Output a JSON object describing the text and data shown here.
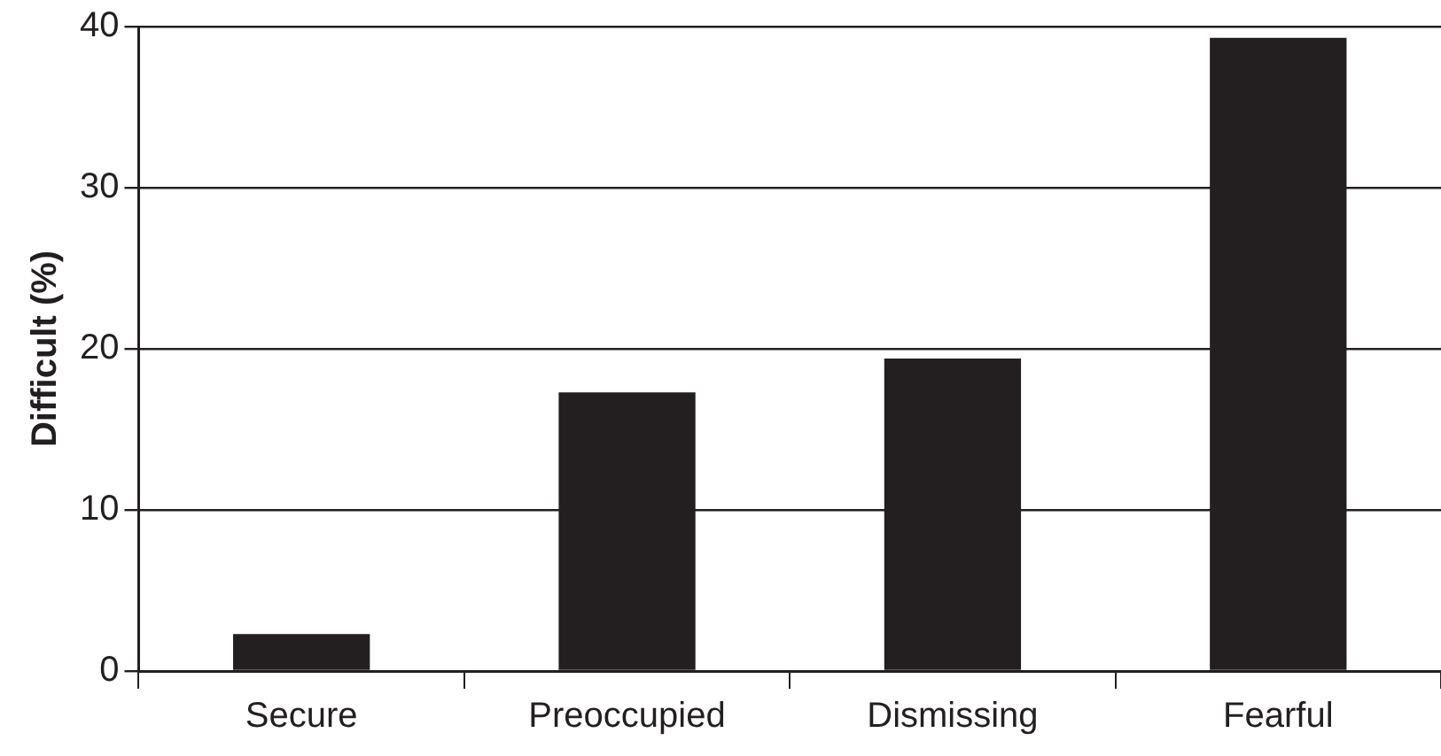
{
  "chart_data": {
    "type": "bar",
    "ylabel": "Difficult (%)",
    "categories": [
      "Secure",
      "Preoccupied",
      "Dismissing",
      "Fearful"
    ],
    "values": [
      2.3,
      17.3,
      19.4,
      39.3
    ],
    "color": "#231f20",
    "ylim": [
      0,
      40
    ],
    "yticks": [
      0,
      10,
      20,
      30,
      40
    ],
    "grid": "y"
  }
}
